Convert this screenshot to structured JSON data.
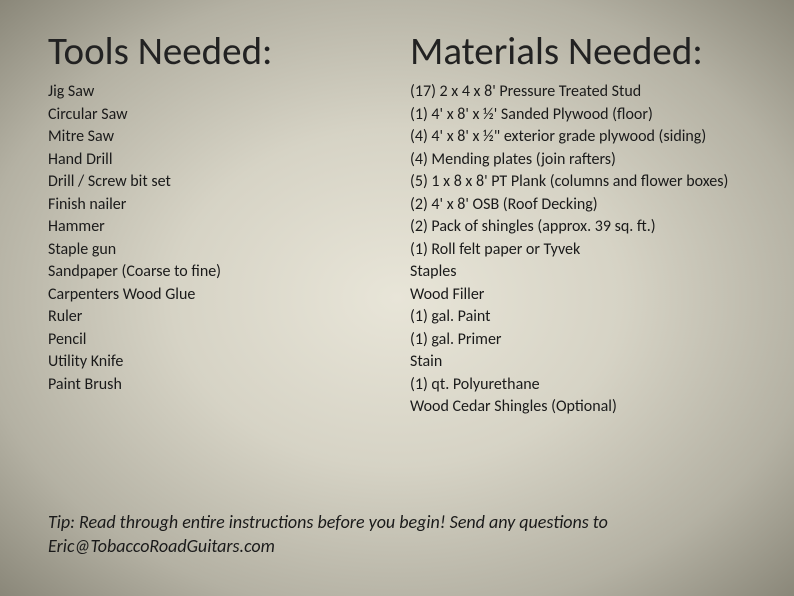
{
  "left": {
    "heading": "Tools Needed:",
    "items": [
      "Jig Saw",
      "Circular Saw",
      "Mitre Saw",
      "Hand Drill",
      "Drill / Screw bit set",
      "Finish nailer",
      "Hammer",
      "Staple gun",
      "Sandpaper (Coarse to fine)",
      "Carpenters Wood Glue",
      "Ruler",
      "Pencil",
      "Utility Knife",
      "Paint Brush"
    ]
  },
  "right": {
    "heading": "Materials Needed:",
    "items": [
      "(17) 2 x 4 x 8' Pressure Treated Stud",
      "(1) 4' x 8' x ½' Sanded Plywood (floor)",
      "(4) 4' x 8' x ½\" exterior grade plywood (siding)",
      "(4) Mending plates (join rafters)",
      "(5) 1 x 8 x 8' PT Plank (columns and flower boxes)",
      "(2) 4' x 8' OSB (Roof Decking)",
      "(2) Pack of shingles (approx. 39 sq. ft.)",
      "(1) Roll felt paper or Tyvek",
      "Staples",
      "Wood Filler",
      "(1) gal. Paint",
      "(1) gal. Primer",
      "Stain",
      "(1) qt. Polyurethane",
      "Wood Cedar Shingles (Optional)"
    ]
  },
  "tip": "Tip: Read through entire instructions before you begin! Send any questions to Eric@TobaccoRoadGuitars.com"
}
